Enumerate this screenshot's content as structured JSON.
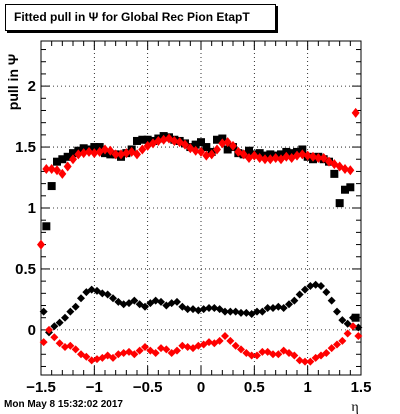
{
  "colors": {
    "black_series": "#000000",
    "red_series": "#ff0000",
    "frame": "#000000",
    "grid": "#000000"
  },
  "chart_data": {
    "type": "scatter",
    "title": "Fitted pull in  Ψ  for Global Rec Pion EtapT",
    "xlabel": "η",
    "ylabel": "pull in  Ψ",
    "xlim": [
      -1.5,
      1.5
    ],
    "ylim": [
      -0.37,
      2.37
    ],
    "grid": true,
    "x_ticks": [
      -1.5,
      -1,
      -0.5,
      0,
      0.5,
      1,
      1.5
    ],
    "x_tick_labels": [
      "−1.5",
      "−1",
      "−0.5",
      "0",
      "0.5",
      "1",
      "1.5"
    ],
    "y_ticks": [
      0,
      0.5,
      1,
      1.5,
      2
    ],
    "y_tick_labels": [
      "0",
      "0.5",
      "1",
      "1.5",
      "2"
    ],
    "series": [
      {
        "color": "#000000",
        "marker": "square",
        "x": [
          -1.45,
          -1.4,
          -1.35,
          -1.3,
          -1.25,
          -1.2,
          -1.15,
          -1.1,
          -1.05,
          -1.0,
          -0.95,
          -0.9,
          -0.85,
          -0.8,
          -0.75,
          -0.7,
          -0.65,
          -0.6,
          -0.55,
          -0.5,
          -0.45,
          -0.4,
          -0.35,
          -0.3,
          -0.25,
          -0.2,
          -0.15,
          -0.1,
          -0.05,
          0.0,
          0.05,
          0.1,
          0.15,
          0.2,
          0.25,
          0.3,
          0.35,
          0.4,
          0.45,
          0.5,
          0.55,
          0.6,
          0.65,
          0.7,
          0.75,
          0.8,
          0.85,
          0.9,
          0.95,
          1.0,
          1.05,
          1.1,
          1.15,
          1.2,
          1.25,
          1.3,
          1.35,
          1.4,
          1.45
        ],
        "y": [
          0.85,
          1.18,
          1.38,
          1.4,
          1.42,
          1.45,
          1.47,
          1.49,
          1.48,
          1.5,
          1.5,
          1.45,
          1.44,
          1.44,
          1.42,
          1.45,
          1.48,
          1.55,
          1.56,
          1.56,
          1.55,
          1.57,
          1.59,
          1.58,
          1.56,
          1.55,
          1.53,
          1.5,
          1.52,
          1.54,
          1.5,
          1.46,
          1.56,
          1.57,
          1.48,
          1.5,
          1.45,
          1.44,
          1.47,
          1.44,
          1.45,
          1.43,
          1.44,
          1.43,
          1.44,
          1.46,
          1.45,
          1.46,
          1.48,
          1.42,
          1.4,
          1.42,
          1.4,
          1.38,
          1.28,
          1.04,
          1.15,
          1.17,
          0.1
        ]
      },
      {
        "color": "#000000",
        "marker": "circle",
        "x": [
          -1.475,
          -1.425,
          -1.375,
          -1.325,
          -1.275,
          -1.225,
          -1.175,
          -1.125,
          -1.075,
          -1.025,
          -0.975,
          -0.925,
          -0.875,
          -0.825,
          -0.775,
          -0.725,
          -0.675,
          -0.625,
          -0.575,
          -0.525,
          -0.475,
          -0.425,
          -0.375,
          -0.325,
          -0.275,
          -0.225,
          -0.175,
          -0.125,
          -0.075,
          -0.025,
          0.025,
          0.075,
          0.125,
          0.175,
          0.225,
          0.275,
          0.325,
          0.375,
          0.425,
          0.475,
          0.525,
          0.575,
          0.625,
          0.675,
          0.725,
          0.775,
          0.825,
          0.875,
          0.925,
          0.975,
          1.025,
          1.075,
          1.125,
          1.175,
          1.225,
          1.275,
          1.325,
          1.375,
          1.425,
          1.475
        ],
        "y": [
          0.15,
          -0.02,
          0.03,
          0.06,
          0.1,
          0.15,
          0.19,
          0.26,
          0.31,
          0.33,
          0.32,
          0.3,
          0.29,
          0.26,
          0.23,
          0.21,
          0.22,
          0.24,
          0.21,
          0.19,
          0.22,
          0.24,
          0.23,
          0.2,
          0.22,
          0.23,
          0.19,
          0.17,
          0.17,
          0.16,
          0.17,
          0.18,
          0.18,
          0.17,
          0.15,
          0.15,
          0.15,
          0.14,
          0.14,
          0.13,
          0.15,
          0.15,
          0.18,
          0.18,
          0.19,
          0.18,
          0.21,
          0.24,
          0.29,
          0.33,
          0.36,
          0.37,
          0.36,
          0.31,
          0.24,
          0.15,
          0.08,
          0.05,
          0.1,
          0.02
        ]
      },
      {
        "color": "#ff0000",
        "marker": "diamond",
        "x": [
          -1.5,
          -1.45,
          -1.4,
          -1.35,
          -1.3,
          -1.25,
          -1.2,
          -1.15,
          -1.1,
          -1.05,
          -1.0,
          -0.95,
          -0.9,
          -0.85,
          -0.8,
          -0.75,
          -0.7,
          -0.65,
          -0.6,
          -0.55,
          -0.5,
          -0.45,
          -0.4,
          -0.35,
          -0.3,
          -0.25,
          -0.2,
          -0.15,
          -0.1,
          -0.05,
          0.0,
          0.05,
          0.1,
          0.15,
          0.2,
          0.25,
          0.3,
          0.35,
          0.4,
          0.45,
          0.5,
          0.55,
          0.6,
          0.65,
          0.7,
          0.75,
          0.8,
          0.85,
          0.9,
          0.95,
          1.0,
          1.05,
          1.1,
          1.15,
          1.2,
          1.25,
          1.3,
          1.35,
          1.4,
          1.45
        ],
        "y": [
          0.7,
          1.32,
          1.32,
          1.31,
          1.28,
          1.34,
          1.4,
          1.44,
          1.45,
          1.46,
          1.45,
          1.46,
          1.48,
          1.47,
          1.44,
          1.44,
          1.45,
          1.46,
          1.44,
          1.48,
          1.51,
          1.53,
          1.55,
          1.56,
          1.57,
          1.55,
          1.54,
          1.52,
          1.49,
          1.47,
          1.46,
          1.43,
          1.44,
          1.48,
          1.53,
          1.54,
          1.51,
          1.46,
          1.44,
          1.41,
          1.43,
          1.41,
          1.4,
          1.4,
          1.41,
          1.4,
          1.42,
          1.41,
          1.43,
          1.44,
          1.43,
          1.42,
          1.41,
          1.41,
          1.38,
          1.36,
          1.34,
          1.32,
          1.31,
          1.78
        ]
      },
      {
        "color": "#ff0000",
        "marker": "circle",
        "x": [
          -1.475,
          -1.425,
          -1.375,
          -1.325,
          -1.275,
          -1.225,
          -1.175,
          -1.125,
          -1.075,
          -1.025,
          -0.975,
          -0.925,
          -0.875,
          -0.825,
          -0.775,
          -0.725,
          -0.675,
          -0.625,
          -0.575,
          -0.525,
          -0.475,
          -0.425,
          -0.375,
          -0.325,
          -0.275,
          -0.225,
          -0.175,
          -0.125,
          -0.075,
          -0.025,
          0.025,
          0.075,
          0.125,
          0.175,
          0.225,
          0.275,
          0.325,
          0.375,
          0.425,
          0.475,
          0.525,
          0.575,
          0.625,
          0.675,
          0.725,
          0.775,
          0.825,
          0.875,
          0.925,
          0.975,
          1.025,
          1.075,
          1.125,
          1.175,
          1.225,
          1.275,
          1.325,
          1.375,
          1.425,
          1.475
        ],
        "y": [
          -0.1,
          0.0,
          -0.06,
          -0.11,
          -0.14,
          -0.13,
          -0.16,
          -0.2,
          -0.22,
          -0.25,
          -0.24,
          -0.23,
          -0.21,
          -0.23,
          -0.2,
          -0.19,
          -0.18,
          -0.2,
          -0.17,
          -0.14,
          -0.17,
          -0.19,
          -0.15,
          -0.16,
          -0.19,
          -0.17,
          -0.13,
          -0.14,
          -0.15,
          -0.13,
          -0.12,
          -0.1,
          -0.11,
          -0.09,
          -0.05,
          -0.09,
          -0.13,
          -0.16,
          -0.19,
          -0.21,
          -0.21,
          -0.18,
          -0.18,
          -0.2,
          -0.2,
          -0.17,
          -0.19,
          -0.21,
          -0.25,
          -0.26,
          -0.26,
          -0.23,
          -0.21,
          -0.19,
          -0.15,
          -0.12,
          -0.09,
          -0.03,
          0.03,
          -0.05
        ]
      }
    ]
  },
  "footer": {
    "timestamp": "Mon May  8 15:32:02 2017"
  }
}
